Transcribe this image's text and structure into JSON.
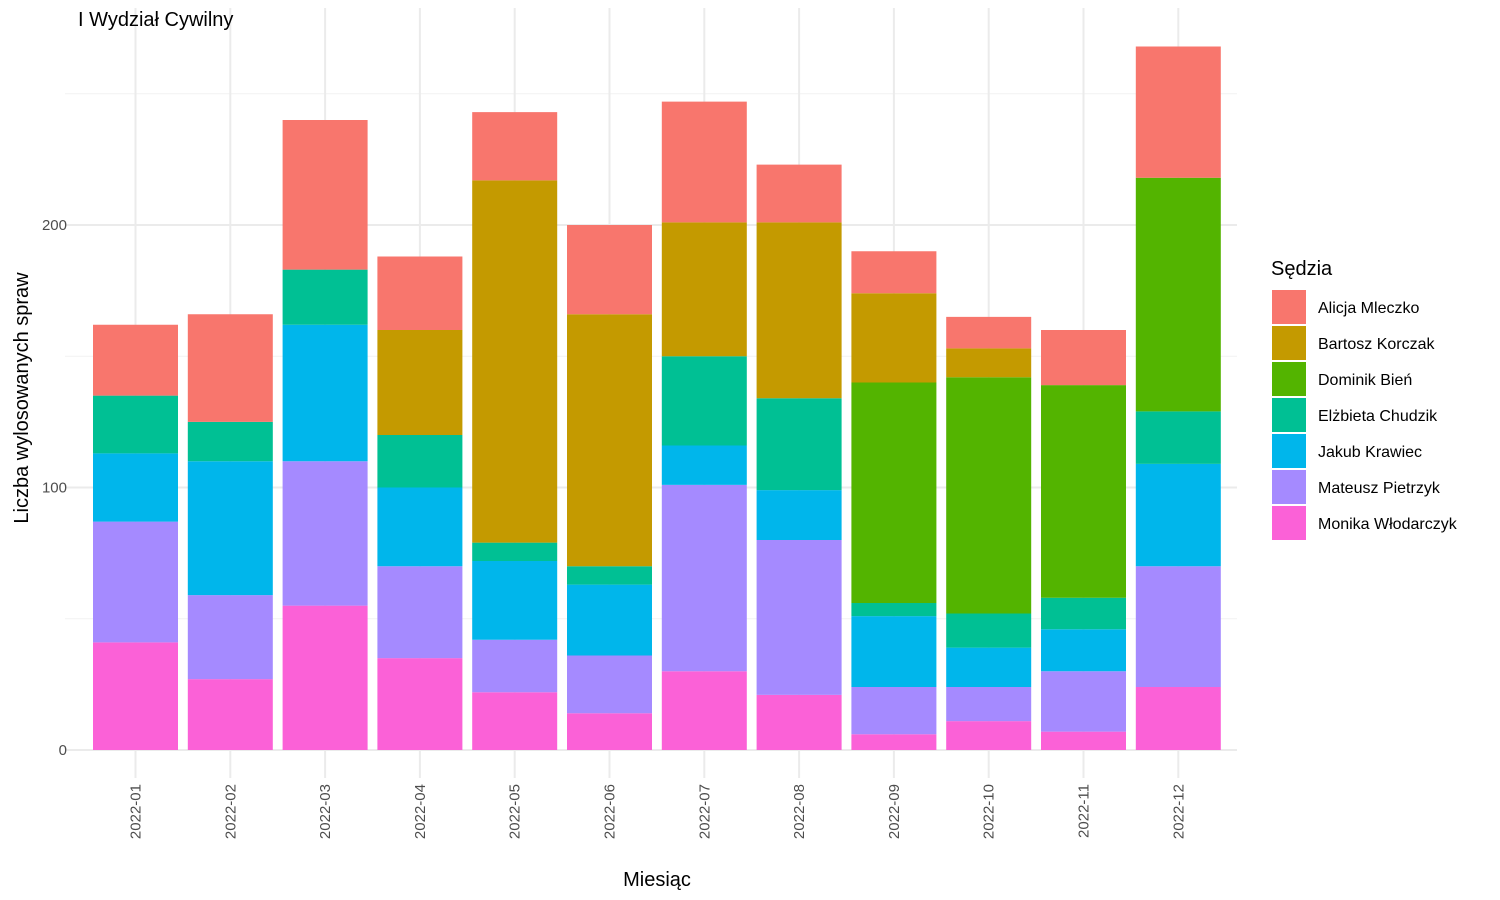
{
  "chart_data": {
    "type": "bar",
    "stacked": true,
    "title": "I Wydział Cywilny",
    "xlabel": "Miesiąc",
    "ylabel": "Liczba wylosowanych spraw",
    "ylim": [
      0,
      275
    ],
    "yticks": [
      0,
      100,
      200
    ],
    "grid": true,
    "legend": {
      "title": "Sędzia",
      "position": "right"
    },
    "categories": [
      "2022-01",
      "2022-02",
      "2022-03",
      "2022-04",
      "2022-05",
      "2022-06",
      "2022-07",
      "2022-08",
      "2022-09",
      "2022-10",
      "2022-11",
      "2022-12"
    ],
    "series": [
      {
        "name": "Alicja Mleczko",
        "color": "#F8766D",
        "values": [
          27,
          41,
          57,
          28,
          26,
          34,
          46,
          22,
          16,
          12,
          21,
          50
        ]
      },
      {
        "name": "Bartosz Korczak",
        "color": "#C49A00",
        "values": [
          0,
          0,
          0,
          40,
          138,
          96,
          51,
          67,
          34,
          11,
          0,
          0
        ]
      },
      {
        "name": "Dominik Bień",
        "color": "#53B400",
        "values": [
          0,
          0,
          0,
          0,
          0,
          0,
          0,
          0,
          84,
          90,
          81,
          89
        ]
      },
      {
        "name": "Elżbieta Chudzik",
        "color": "#00C094",
        "values": [
          22,
          15,
          21,
          20,
          7,
          7,
          34,
          35,
          5,
          13,
          12,
          20
        ]
      },
      {
        "name": "Jakub Krawiec",
        "color": "#00B6EB",
        "values": [
          26,
          51,
          52,
          30,
          30,
          27,
          15,
          19,
          27,
          15,
          16,
          39
        ]
      },
      {
        "name": "Mateusz Pietrzyk",
        "color": "#A58AFF",
        "values": [
          46,
          32,
          55,
          35,
          20,
          22,
          71,
          59,
          18,
          13,
          23,
          46
        ]
      },
      {
        "name": "Monika Włodarczyk",
        "color": "#FB61D7",
        "values": [
          41,
          27,
          55,
          35,
          22,
          14,
          30,
          21,
          6,
          11,
          7,
          24
        ]
      }
    ]
  }
}
